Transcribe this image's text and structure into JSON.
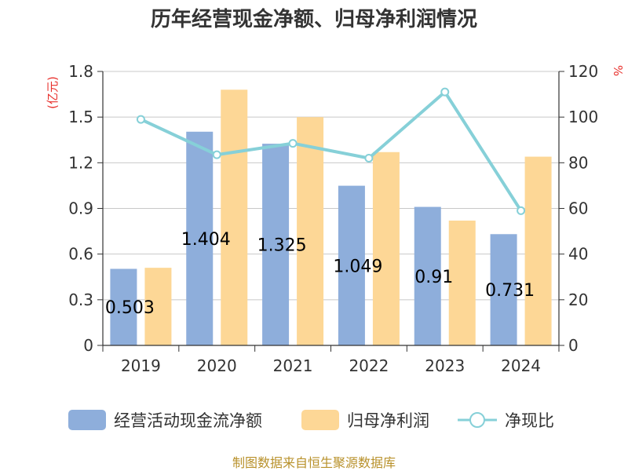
{
  "chart_data": {
    "type": "bar",
    "title": "历年经营现金净额、归母净利润情况",
    "categories": [
      "2019",
      "2020",
      "2021",
      "2022",
      "2023",
      "2024"
    ],
    "series": [
      {
        "name": "经营活动现金流净额",
        "type": "bar",
        "axis": "left",
        "color": "#8eaedb",
        "values": [
          0.503,
          1.404,
          1.325,
          1.049,
          0.91,
          0.731
        ],
        "labels": [
          "0.503",
          "1.404",
          "1.325",
          "1.049",
          "0.91",
          "0.731"
        ]
      },
      {
        "name": "归母净利润",
        "type": "bar",
        "axis": "left",
        "color": "#fdd796",
        "values": [
          0.51,
          1.68,
          1.5,
          1.27,
          0.82,
          1.24
        ]
      },
      {
        "name": "净现比",
        "type": "line",
        "axis": "right",
        "color": "#86d0d8",
        "values": [
          99,
          83.5,
          88.5,
          82,
          111,
          59
        ]
      }
    ],
    "y_left": {
      "label": "(亿元)",
      "range": [
        0,
        1.8
      ],
      "ticks": [
        "0",
        "0.3",
        "0.6",
        "0.9",
        "1.2",
        "1.5",
        "1.8"
      ]
    },
    "y_right": {
      "label": "%",
      "range": [
        0,
        120
      ],
      "ticks": [
        "0",
        "20",
        "40",
        "60",
        "80",
        "100",
        "120"
      ]
    },
    "grid": true,
    "legend_position": "bottom",
    "source": "制图数据来自恒生聚源数据库"
  }
}
